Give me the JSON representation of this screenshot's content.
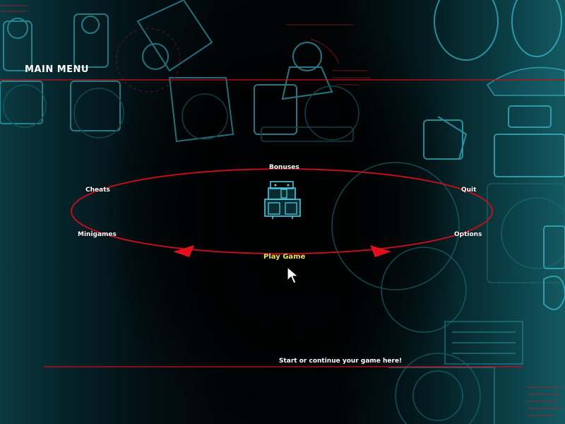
{
  "menu": {
    "title": "MAIN MENU",
    "items": {
      "bonuses": "Bonuses",
      "cheats": "Cheats",
      "quit": "Quit",
      "minigames": "Minigames",
      "options": "Options",
      "play_game": "Play Game"
    },
    "selected": "play_game",
    "description": "Start or continue your game here!"
  },
  "colors": {
    "ring": "#c0101c",
    "selected_text": "#f2e24a",
    "text": "#ffffff",
    "blueprint": "#3fc6d8"
  },
  "icons": {
    "center": "robot-icon",
    "pointer": "mouse-cursor-icon"
  }
}
